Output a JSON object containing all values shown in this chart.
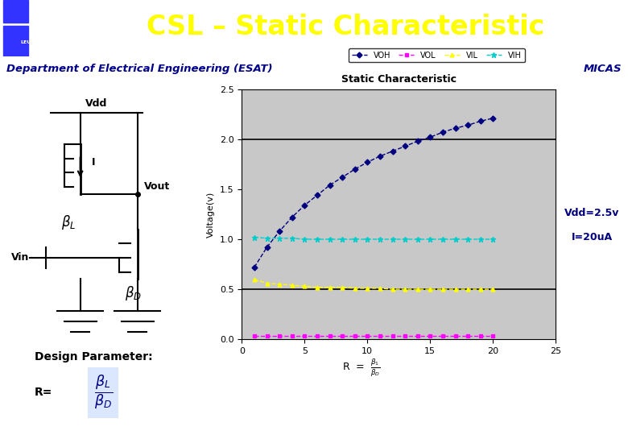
{
  "title": "CSL – Static Characteristic",
  "header_bg": "#0000CC",
  "header_text_color": "#FFFF00",
  "subheader_bg": "#FFFF00",
  "subheader_text": "Department of Electrical Engineering (ESAT)",
  "subheader_right": "MICAS",
  "subheader_text_color": "#000088",
  "plot_title": "Static Characteristic",
  "plot_bg": "#C8C8C8",
  "ylabel": "Voltage(v)",
  "xlim": [
    0,
    25
  ],
  "ylim": [
    0,
    2.5
  ],
  "xticks": [
    0,
    5,
    10,
    15,
    20,
    25
  ],
  "yticks": [
    0,
    0.5,
    1.0,
    1.5,
    2.0,
    2.5
  ],
  "annotation_line1": "Vdd=2.5v",
  "annotation_line2": "I=20uA",
  "annotation_color": "#000080",
  "VOH_color": "#000080",
  "VOL_color": "#FF00FF",
  "VIL_color": "#FFFF00",
  "VIH_color": "#00CCCC",
  "hline_y1": 2.0,
  "hline_y2": 0.5,
  "x_data": [
    1,
    2,
    3,
    4,
    5,
    6,
    7,
    8,
    9,
    10,
    11,
    12,
    13,
    14,
    15,
    16,
    17,
    18,
    19,
    20
  ],
  "VOH_data": [
    0.72,
    0.92,
    1.08,
    1.22,
    1.34,
    1.44,
    1.54,
    1.62,
    1.7,
    1.77,
    1.83,
    1.88,
    1.93,
    1.98,
    2.02,
    2.07,
    2.11,
    2.14,
    2.18,
    2.21
  ],
  "VOL_data": [
    0.03,
    0.03,
    0.03,
    0.03,
    0.03,
    0.03,
    0.03,
    0.03,
    0.03,
    0.03,
    0.03,
    0.03,
    0.03,
    0.03,
    0.03,
    0.03,
    0.03,
    0.03,
    0.03,
    0.03
  ],
  "VIL_data": [
    0.6,
    0.56,
    0.55,
    0.54,
    0.53,
    0.52,
    0.52,
    0.52,
    0.51,
    0.51,
    0.51,
    0.5,
    0.5,
    0.5,
    0.5,
    0.5,
    0.5,
    0.5,
    0.5,
    0.5
  ],
  "VIH_data": [
    1.02,
    1.01,
    1.01,
    1.01,
    1.0,
    1.0,
    1.0,
    1.0,
    1.0,
    1.0,
    1.0,
    1.0,
    1.0,
    1.0,
    1.0,
    1.0,
    1.0,
    1.0,
    1.0,
    1.0
  ]
}
